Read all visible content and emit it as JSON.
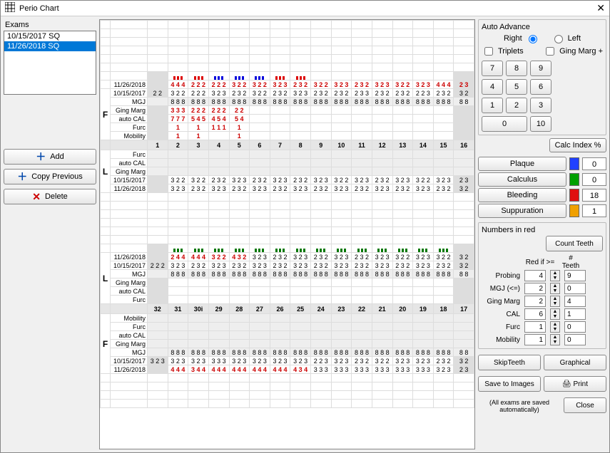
{
  "window": {
    "title": "Perio Chart"
  },
  "examsLabel": "Exams",
  "exams": [
    {
      "text": "10/15/2017   SQ",
      "selected": false
    },
    {
      "text": "11/26/2018   SQ",
      "selected": true
    }
  ],
  "leftButtons": {
    "add": "Add",
    "copyPrev": "Copy Previous",
    "delete": "Delete"
  },
  "autoAdvance": {
    "title": "Auto Advance",
    "right": "Right",
    "left": "Left",
    "selected": "right"
  },
  "checks": {
    "triplets": "Triplets",
    "gingMarg": "Ging Marg +"
  },
  "keypad": [
    "7",
    "8",
    "9",
    "4",
    "5",
    "6",
    "1",
    "2",
    "3",
    "0",
    "10"
  ],
  "calcIndex": "Calc Index %",
  "indices": [
    {
      "label": "Plaque",
      "color": "#2040ff",
      "value": "0"
    },
    {
      "label": "Calculus",
      "color": "#00a000",
      "value": "0"
    },
    {
      "label": "Bleeding",
      "color": "#e01010",
      "value": "18"
    },
    {
      "label": "Suppuration",
      "color": "#f0a000",
      "value": "1"
    }
  ],
  "numbersInRed": {
    "title": "Numbers in red",
    "countTeeth": "Count Teeth",
    "colHeaders": [
      "Red if >=",
      "# Teeth"
    ],
    "rows": [
      {
        "label": "Probing",
        "thresh": "4",
        "teeth": "9"
      },
      {
        "label": "MGJ (<=)",
        "thresh": "2",
        "teeth": "0"
      },
      {
        "label": "Ging Marg",
        "thresh": "2",
        "teeth": "4"
      },
      {
        "label": "CAL",
        "thresh": "6",
        "teeth": "1"
      },
      {
        "label": "Furc",
        "thresh": "1",
        "teeth": "0"
      },
      {
        "label": "Mobility",
        "thresh": "1",
        "teeth": "0"
      }
    ]
  },
  "bottomButtons": {
    "skip": "SkipTeeth",
    "graphical": "Graphical",
    "save": "Save to Images",
    "print": "Print",
    "close": "Close",
    "note": "(All exams are saved automatically)"
  },
  "chart": {
    "teethTop": [
      "1",
      "2",
      "3",
      "4",
      "5",
      "6",
      "7",
      "8",
      "9",
      "10",
      "11",
      "12",
      "13",
      "14",
      "15",
      "16"
    ],
    "teethBottom": [
      "32",
      "31",
      "30i",
      "29",
      "28",
      "27",
      "26",
      "25",
      "24",
      "23",
      "22",
      "21",
      "20",
      "19",
      "18",
      "17"
    ],
    "rowLabels": {
      "mgj": "MGJ",
      "gm": "Ging Marg",
      "cal": "auto CAL",
      "furc": "Furc",
      "mob": "Mobility"
    },
    "dates": {
      "d1": "11/26/2018",
      "d2": "10/15/2017"
    },
    "section1": {
      "ticks": {
        "colors": [
          "red",
          "red",
          "red",
          "blue",
          "blue",
          "blue",
          "blue",
          "blue",
          "blue",
          "blue",
          "blue",
          "blue",
          "red",
          "red",
          "red",
          "",
          "",
          "",
          "red",
          "red",
          "red"
        ]
      },
      "r1": {
        "cls": "num-red",
        "arr": [
          "",
          "4 4 4",
          "2 2 2",
          "2 2 2",
          "3 2 2",
          "3 2 2",
          "3 2 3",
          "2 3 2",
          "3 2 2",
          "3 2 3",
          "2 3 2",
          "3 2 3",
          "3 2 2",
          "3 2 3",
          "4 4 4",
          "2 3"
        ]
      },
      "r2": {
        "cls": "",
        "arr": [
          "2 2",
          "3 2 2",
          "2 2 2",
          "3 2 3",
          "2 3 2",
          "3 2 2",
          "2 3 2",
          "3 2 3",
          "2 3 2",
          "2 3 2",
          "2 3 3",
          "2 3 2",
          "2 3 2",
          "2 2 3",
          "2 3 2",
          "3 2"
        ]
      },
      "mgj": {
        "cls": "",
        "arr": [
          "",
          "8 8 8",
          "8 8 8",
          "8 8 8",
          "8 8 8",
          "8 8 8",
          "8 8 8",
          "8 8 8",
          "8 8 8",
          "8 8 8",
          "8 8 8",
          "8 8 8",
          "8 8 8",
          "8 8 8",
          "8 8 8",
          "8 8"
        ]
      },
      "gm": {
        "cls": "num-red",
        "arr": [
          "",
          "3 3 3",
          "2 2 2",
          "2 2 2",
          "2 2",
          "",
          "",
          "",
          "",
          "",
          "",
          "",
          "",
          "",
          "",
          ""
        ]
      },
      "cal": {
        "cls": "num-red",
        "arr": [
          "",
          "7 7 7",
          "5 4 5",
          "4 5 4",
          "5 4",
          "",
          "",
          "",
          "",
          "",
          "",
          "",
          "",
          "",
          "",
          ""
        ]
      },
      "furc": {
        "cls": "num-red",
        "arr": [
          "",
          "1",
          "1",
          "1 1 1",
          "1",
          "",
          "",
          "",
          "",
          "",
          "",
          "",
          "",
          "",
          "",
          ""
        ]
      },
      "mob": {
        "cls": "num-red",
        "arr": [
          "",
          "1",
          "1",
          "",
          "1",
          "",
          "",
          "",
          "",
          "",
          "",
          "",
          "",
          "",
          "",
          ""
        ]
      }
    },
    "section2": {
      "r1": {
        "cls": "",
        "arr": [
          "",
          "3 2 2",
          "3 2 2",
          "2 3 2",
          "3 2 3",
          "2 3 2",
          "3 2 3",
          "2 3 2",
          "3 2 3",
          "3 2 2",
          "3 2 3",
          "2 3 2",
          "3 2 3",
          "3 2 2",
          "3 2 3",
          "2 3"
        ]
      },
      "r2": {
        "cls": "",
        "arr": [
          "",
          "3 2 3",
          "2 3 2",
          "3 2 3",
          "2 3 2",
          "3 2 3",
          "2 3 2",
          "3 2 3",
          "2 3 2",
          "3 2 3",
          "2 3 2",
          "3 2 3",
          "2 3 2",
          "3 2 3",
          "2 3 2",
          "3 2"
        ]
      }
    },
    "section3": {
      "greenticks": true,
      "r1": {
        "cls": "",
        "arr": [
          "",
          "2 4 4",
          "4 4 4",
          "3 2 2",
          "4 3 2",
          "3 2 3",
          "2 3 2",
          "3 2 3",
          "2 3 2",
          "3 2 3",
          "2 3 2",
          "3 2 3",
          "3 2 2",
          "3 2 3",
          "3 2 2",
          "3 2"
        ]
      },
      "r2": {
        "cls": "",
        "arr": [
          "2 2 2",
          "3 2 3",
          "2 3 2",
          "3 2 3",
          "2 3 2",
          "3 2 3",
          "2 3 2",
          "3 2 3",
          "2 3 2",
          "3 2 3",
          "2 3 2",
          "3 2 3",
          "2 3 2",
          "3 2 3",
          "2 3 2",
          "3 2"
        ]
      },
      "mgj": {
        "cls": "",
        "arr": [
          "",
          "8 8 8",
          "8 8 8",
          "8 8 8",
          "8 8 8",
          "8 8 8",
          "8 8 8",
          "8 8 8",
          "8 8 8",
          "8 8 8",
          "8 8 8",
          "8 8 8",
          "8 8 8",
          "8 8 8",
          "8 8 8",
          "8 8"
        ]
      }
    },
    "section4": {
      "mgj": {
        "cls": "",
        "arr": [
          "",
          "8 8 8",
          "8 8 8",
          "8 8 8",
          "8 8 8",
          "8 8 8",
          "8 8 8",
          "8 8 8",
          "8 8 8",
          "8 8 8",
          "8 8 8",
          "8 8 8",
          "8 8 8",
          "8 8 8",
          "8 8 8",
          "8 8"
        ]
      },
      "r1": {
        "cls": "",
        "arr": [
          "3 2 3",
          "3 2 3",
          "3 2 3",
          "3 3 3",
          "3 2 3",
          "3 2 3",
          "3 2 3",
          "3 2 3",
          "2 2 3",
          "3 2 3",
          "2 3 2",
          "3 2 2",
          "3 2 3",
          "3 2 3",
          "2 3 2",
          "3 2"
        ]
      },
      "r2": {
        "cls": "num-red",
        "arr": [
          "",
          "4 4 4",
          "3 4 4",
          "4 4 4",
          "4 4 4",
          "4 4 4",
          "4 4 4",
          "4 3 4",
          "3 3 3",
          "3 3 3",
          "3 3 3",
          "3 3 3",
          "3 3 3",
          "3 3 3",
          "3 2 3",
          "2 3"
        ]
      }
    }
  }
}
